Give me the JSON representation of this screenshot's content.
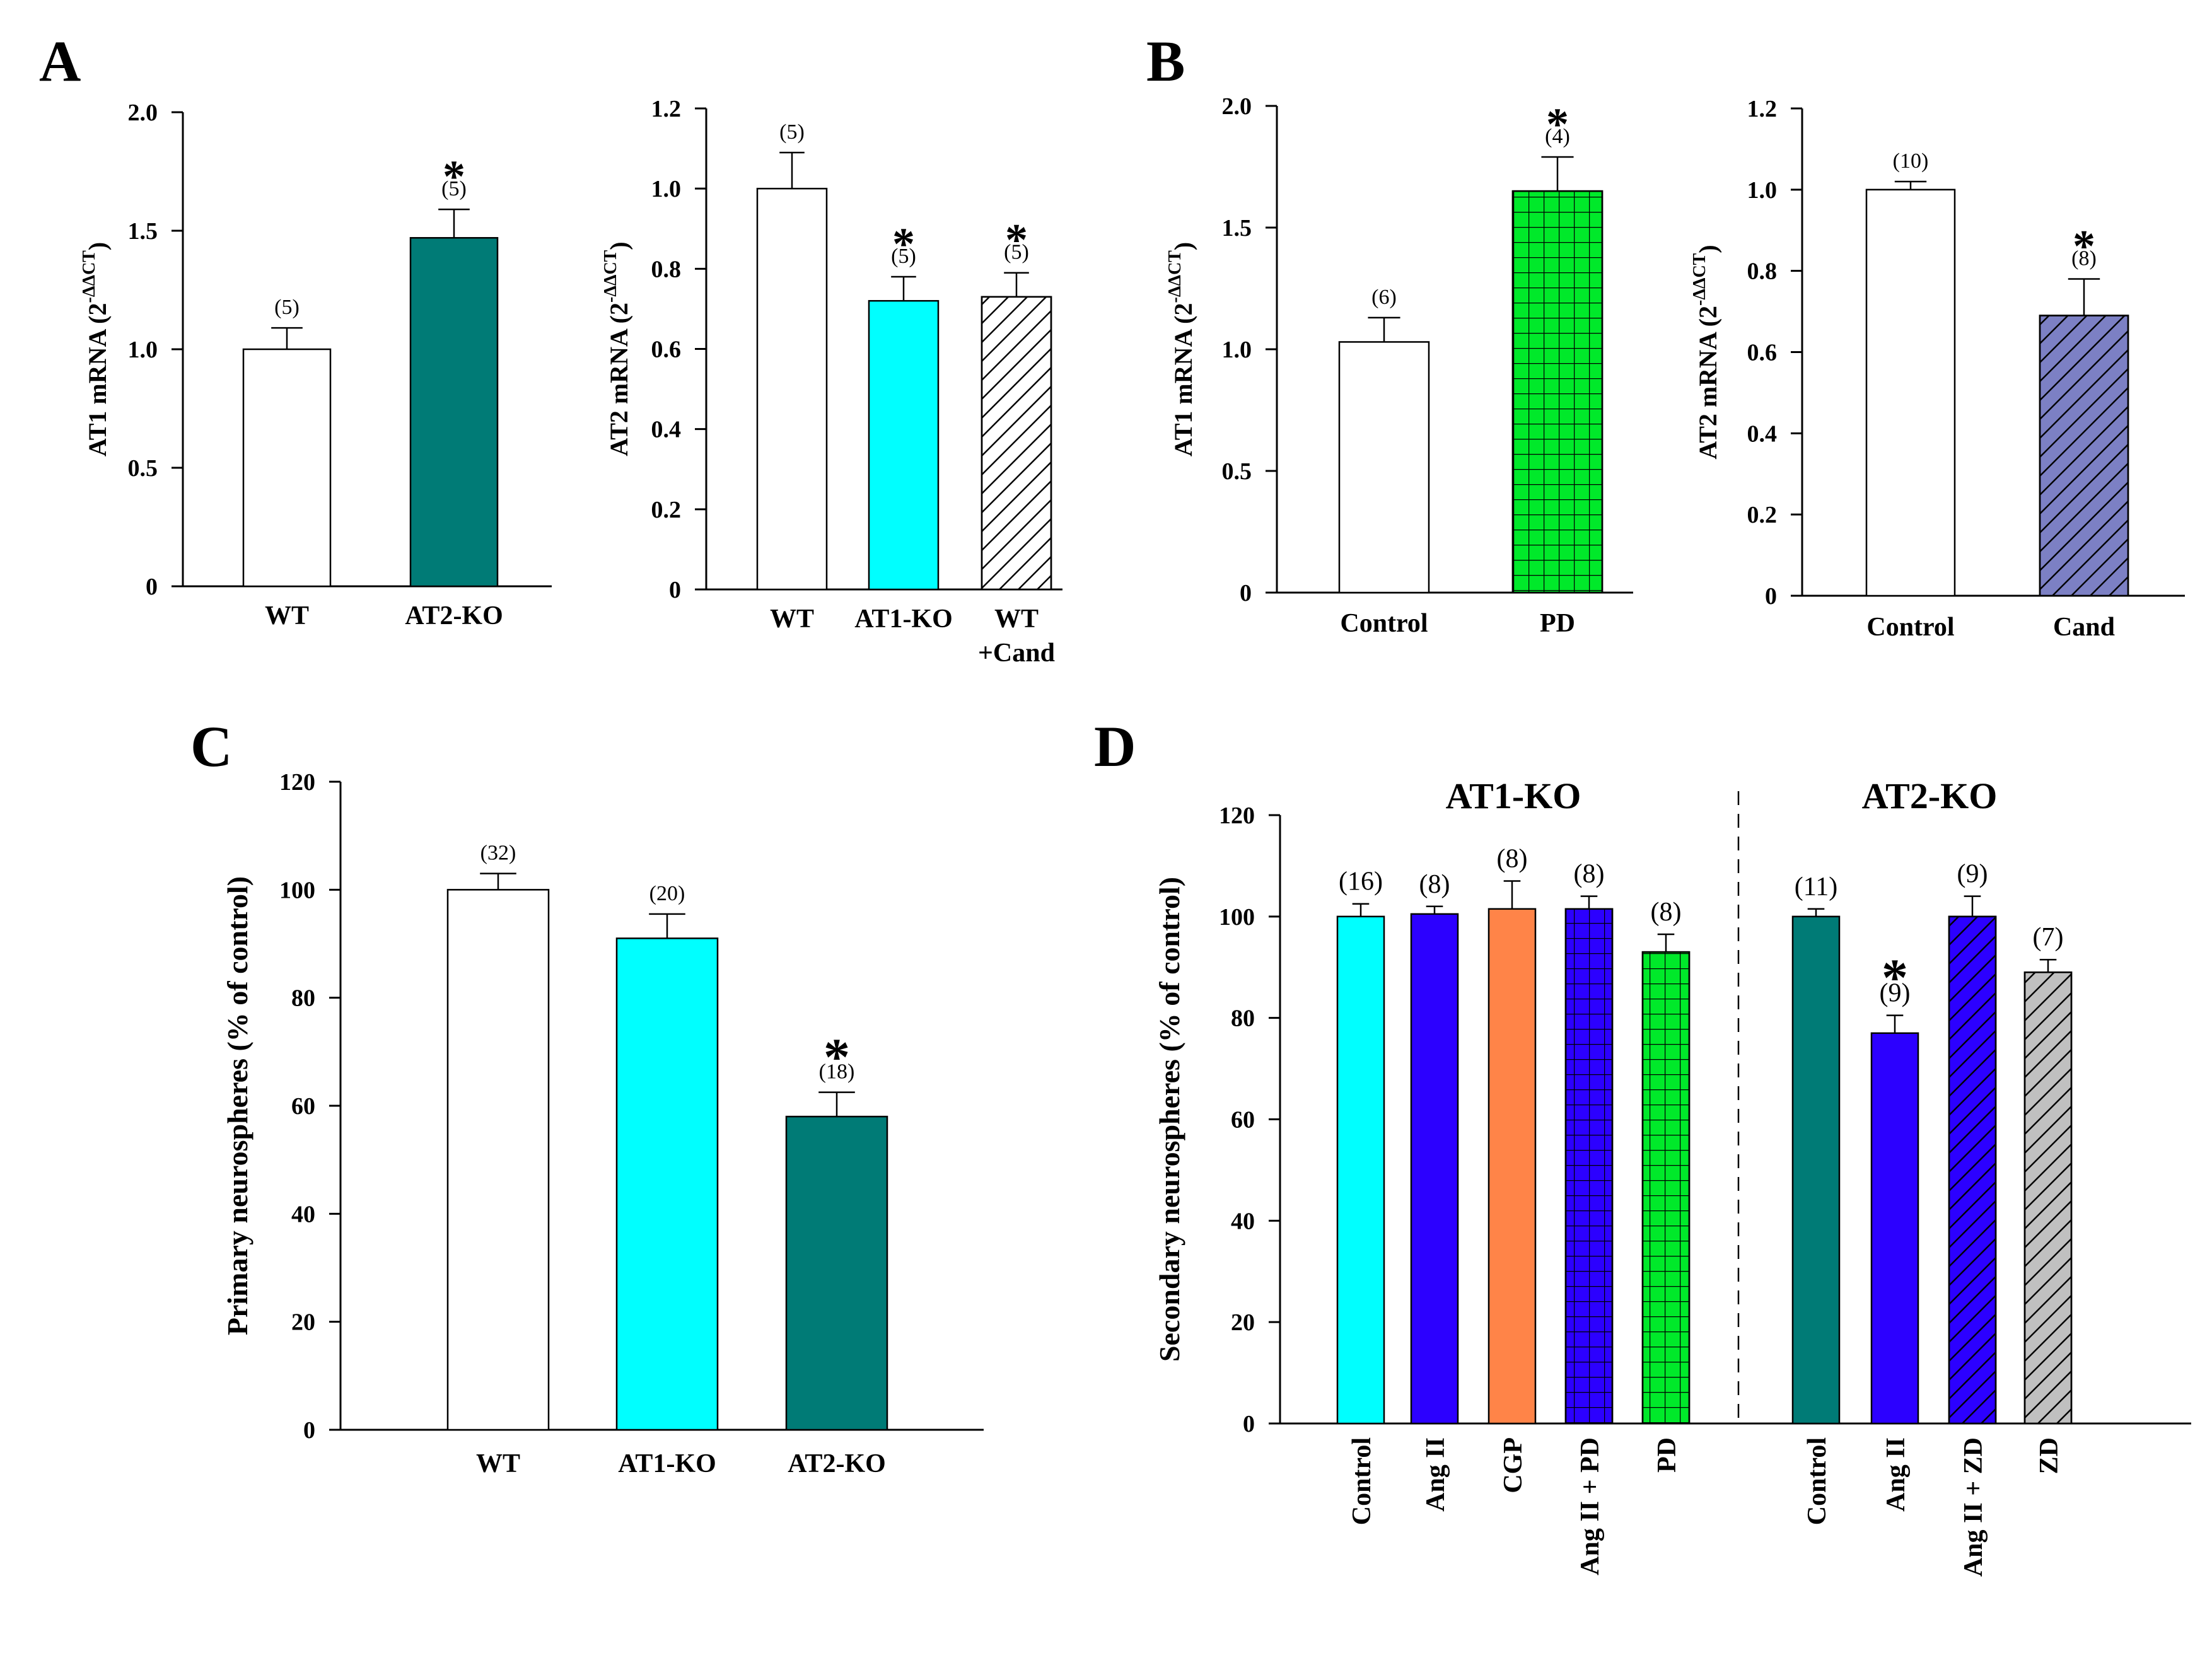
{
  "panels": [
    {
      "id": "A",
      "letter": "A"
    },
    {
      "id": "B",
      "letter": "B"
    },
    {
      "id": "C",
      "letter": "C"
    },
    {
      "id": "D",
      "letter": "D"
    }
  ],
  "chart_data": [
    {
      "id": "A1",
      "panel": "A",
      "type": "bar",
      "ylabel_main": "AT1 mRNA (2",
      "ylabel_sup": "-ΔΔCT",
      "ylabel_end": ")",
      "ylim": [
        0,
        2.0
      ],
      "yticks": [
        {
          "v": 0,
          "label": "0"
        },
        {
          "v": 0.5,
          "label": "0.5"
        },
        {
          "v": 1.0,
          "label": "1.0"
        },
        {
          "v": 1.5,
          "label": "1.5"
        },
        {
          "v": 2.0,
          "label": "2.0"
        }
      ],
      "categories": [
        "WT",
        "AT2-KO"
      ],
      "bars": [
        {
          "value": 1.0,
          "err": 0.09,
          "n": "(5)",
          "sig": false,
          "color": "#ffffff",
          "pattern": "none"
        },
        {
          "value": 1.47,
          "err": 0.12,
          "n": "(5)",
          "sig": true,
          "color": "#007b76",
          "pattern": "none"
        }
      ],
      "sig_symbol": "*"
    },
    {
      "id": "A2",
      "panel": "A",
      "type": "bar",
      "ylabel_main": "AT2 mRNA (2",
      "ylabel_sup": "-ΔΔCT",
      "ylabel_end": ")",
      "ylim": [
        0,
        1.2
      ],
      "yticks": [
        {
          "v": 0,
          "label": "0"
        },
        {
          "v": 0.2,
          "label": "0.2"
        },
        {
          "v": 0.4,
          "label": "0.4"
        },
        {
          "v": 0.6,
          "label": "0.6"
        },
        {
          "v": 0.8,
          "label": "0.8"
        },
        {
          "v": 1.0,
          "label": "1.0"
        },
        {
          "v": 1.2,
          "label": "1.2"
        }
      ],
      "categories": [
        "WT",
        "AT1-KO",
        "WT|+Cand"
      ],
      "bars": [
        {
          "value": 1.0,
          "err": 0.09,
          "n": "(5)",
          "sig": false,
          "color": "#ffffff",
          "pattern": "none"
        },
        {
          "value": 0.72,
          "err": 0.06,
          "n": "(5)",
          "sig": true,
          "color": "#00ffff",
          "pattern": "none"
        },
        {
          "value": 0.73,
          "err": 0.06,
          "n": "(5)",
          "sig": true,
          "color": "#ffffff",
          "pattern": "diag-black"
        }
      ],
      "sig_symbol": "*"
    },
    {
      "id": "B1",
      "panel": "B",
      "type": "bar",
      "ylabel_main": "AT1 mRNA (2",
      "ylabel_sup": "-ΔΔCT",
      "ylabel_end": ")",
      "ylim": [
        0,
        2.0
      ],
      "yticks": [
        {
          "v": 0,
          "label": "0"
        },
        {
          "v": 0.5,
          "label": "0.5"
        },
        {
          "v": 1.0,
          "label": "1.0"
        },
        {
          "v": 1.5,
          "label": "1.5"
        },
        {
          "v": 2.0,
          "label": "2.0"
        }
      ],
      "categories": [
        "Control",
        "PD"
      ],
      "bars": [
        {
          "value": 1.03,
          "err": 0.1,
          "n": "(6)",
          "sig": false,
          "color": "#ffffff",
          "pattern": "none"
        },
        {
          "value": 1.65,
          "err": 0.14,
          "n": "(4)",
          "sig": true,
          "color": "#00e92a",
          "pattern": "grid"
        }
      ],
      "sig_symbol": "*"
    },
    {
      "id": "B2",
      "panel": "B",
      "type": "bar",
      "ylabel_main": "AT2 mRNA (2",
      "ylabel_sup": "-ΔΔCT",
      "ylabel_end": ")",
      "ylim": [
        0,
        1.2
      ],
      "yticks": [
        {
          "v": 0,
          "label": "0"
        },
        {
          "v": 0.2,
          "label": "0.2"
        },
        {
          "v": 0.4,
          "label": "0.4"
        },
        {
          "v": 0.6,
          "label": "0.6"
        },
        {
          "v": 0.8,
          "label": "0.8"
        },
        {
          "v": 1.0,
          "label": "1.0"
        },
        {
          "v": 1.2,
          "label": "1.2"
        }
      ],
      "categories": [
        "Control",
        "Cand"
      ],
      "bars": [
        {
          "value": 1.0,
          "err": 0.02,
          "n": "(10)",
          "sig": false,
          "color": "#ffffff",
          "pattern": "none"
        },
        {
          "value": 0.69,
          "err": 0.09,
          "n": "(8)",
          "sig": true,
          "color": "#7c80c4",
          "pattern": "diag-black"
        }
      ],
      "sig_symbol": "*"
    },
    {
      "id": "C",
      "panel": "C",
      "type": "bar",
      "ylabel": "Primary neurospheres (% of control)",
      "ylim": [
        0,
        120
      ],
      "yticks": [
        {
          "v": 0,
          "label": "0"
        },
        {
          "v": 20,
          "label": "20"
        },
        {
          "v": 40,
          "label": "40"
        },
        {
          "v": 60,
          "label": "60"
        },
        {
          "v": 80,
          "label": "80"
        },
        {
          "v": 100,
          "label": "100"
        },
        {
          "v": 120,
          "label": "120"
        }
      ],
      "categories": [
        "WT",
        "AT1-KO",
        "AT2-KO"
      ],
      "bars": [
        {
          "value": 100,
          "err": 3,
          "n": "(32)",
          "sig": false,
          "color": "#ffffff",
          "pattern": "none"
        },
        {
          "value": 91,
          "err": 4.5,
          "n": "(20)",
          "sig": false,
          "color": "#00ffff",
          "pattern": "none"
        },
        {
          "value": 58,
          "err": 4.5,
          "n": "(18)",
          "sig": true,
          "color": "#007b76",
          "pattern": "none"
        }
      ],
      "sig_symbol": "*"
    },
    {
      "id": "D",
      "panel": "D",
      "type": "bar",
      "ylabel": "Secondary neurospheres (% of control)",
      "ylim": [
        0,
        120
      ],
      "yticks": [
        {
          "v": 0,
          "label": "0"
        },
        {
          "v": 20,
          "label": "20"
        },
        {
          "v": 40,
          "label": "40"
        },
        {
          "v": 60,
          "label": "60"
        },
        {
          "v": 80,
          "label": "80"
        },
        {
          "v": 100,
          "label": "100"
        },
        {
          "v": 120,
          "label": "120"
        }
      ],
      "groups": [
        {
          "title": "AT1-KO"
        },
        {
          "title": "AT2-KO"
        }
      ],
      "categories": [
        "Control",
        "Ang II",
        "CGP",
        "Ang II + PD",
        "PD",
        "Control",
        "Ang II",
        "Ang II + ZD",
        "ZD"
      ],
      "bars": [
        {
          "value": 100,
          "err": 2.5,
          "n": "(16)",
          "sig": false,
          "color": "#00ffff",
          "pattern": "none"
        },
        {
          "value": 100.5,
          "err": 1.5,
          "n": "(8)",
          "sig": false,
          "color": "#2c00ff",
          "pattern": "none"
        },
        {
          "value": 101.5,
          "err": 5.5,
          "n": "(8)",
          "sig": false,
          "color": "#ff8448",
          "pattern": "none"
        },
        {
          "value": 101.5,
          "err": 2.5,
          "n": "(8)",
          "sig": false,
          "color": "#2c00ff",
          "pattern": "grid"
        },
        {
          "value": 93,
          "err": 3.5,
          "n": "(8)",
          "sig": false,
          "color": "#00e92a",
          "pattern": "grid"
        },
        {
          "value": 100,
          "err": 1.5,
          "n": "(11)",
          "sig": false,
          "color": "#007b76",
          "pattern": "none"
        },
        {
          "value": 77,
          "err": 3.5,
          "n": "(9)",
          "sig": true,
          "color": "#2c00ff",
          "pattern": "none"
        },
        {
          "value": 100,
          "err": 4,
          "n": "(9)",
          "sig": false,
          "color": "#2c00ff",
          "pattern": "diag-black"
        },
        {
          "value": 89,
          "err": 2.5,
          "n": "(7)",
          "sig": false,
          "color": "#c0c0c0",
          "pattern": "diag-black"
        }
      ],
      "sig_symbol": "*"
    }
  ]
}
